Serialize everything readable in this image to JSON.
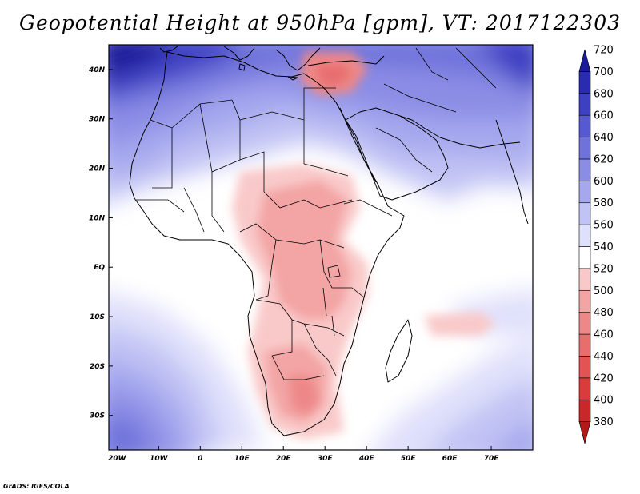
{
  "title": "Geopotential Height at 950hPa [gpm], VT: 2017122303",
  "credit": "GrADS: IGES/COLA",
  "map": {
    "lon_range": [
      -22,
      80
    ],
    "lat_range": [
      -37,
      45
    ],
    "x_ticks": [
      {
        "lon": -20,
        "label": "20W"
      },
      {
        "lon": -10,
        "label": "10W"
      },
      {
        "lon": 0,
        "label": "0"
      },
      {
        "lon": 10,
        "label": "10E"
      },
      {
        "lon": 20,
        "label": "20E"
      },
      {
        "lon": 30,
        "label": "30E"
      },
      {
        "lon": 40,
        "label": "40E"
      },
      {
        "lon": 50,
        "label": "50E"
      },
      {
        "lon": 60,
        "label": "60E"
      },
      {
        "lon": 70,
        "label": "70E"
      }
    ],
    "y_ticks": [
      {
        "lat": 40,
        "label": "40N"
      },
      {
        "lat": 30,
        "label": "30N"
      },
      {
        "lat": 20,
        "label": "20N"
      },
      {
        "lat": 10,
        "label": "10N"
      },
      {
        "lat": 0,
        "label": "EQ"
      },
      {
        "lat": -10,
        "label": "10S"
      },
      {
        "lat": -20,
        "label": "20S"
      },
      {
        "lat": -30,
        "label": "30S"
      }
    ]
  },
  "colorbar": {
    "levels": [
      "380",
      "400",
      "420",
      "440",
      "460",
      "480",
      "500",
      "520",
      "540",
      "560",
      "580",
      "600",
      "620",
      "640",
      "660",
      "680",
      "700",
      "720"
    ],
    "colors": [
      "#b21a1a",
      "#c82828",
      "#da3c3c",
      "#e25454",
      "#e86e6e",
      "#ee8888",
      "#f3a4a4",
      "#f9c9c9",
      "#ffffff",
      "#dfe0fb",
      "#c1c3f4",
      "#a6a8ee",
      "#8b8de5",
      "#7072db",
      "#5659d0",
      "#3e40c2",
      "#2a2bb0",
      "#1a1a9a"
    ]
  }
}
